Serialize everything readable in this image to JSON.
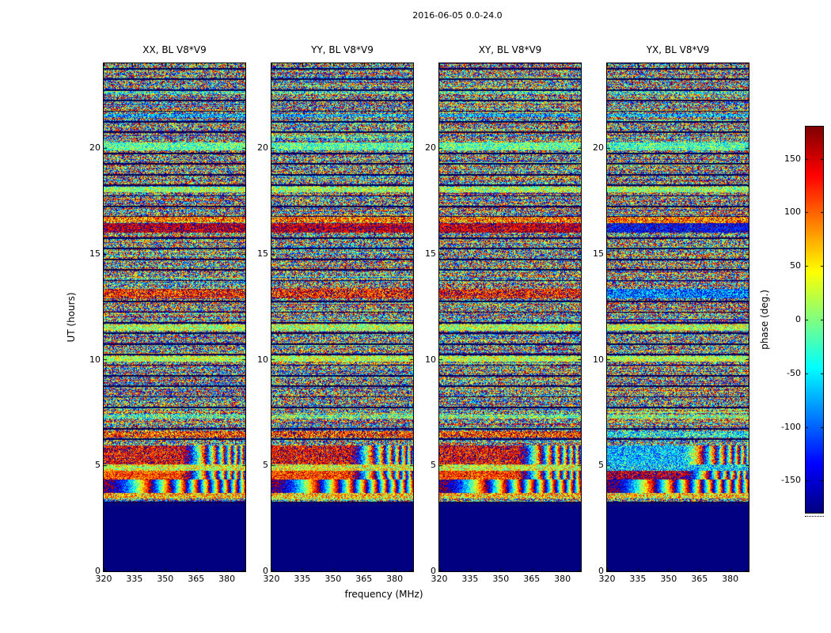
{
  "figure": {
    "title": "2016-06-05 0.0-24.0",
    "background": "#ffffff"
  },
  "chart_data": {
    "type": "heatmap",
    "title": "2016-06-05 0.0-24.0",
    "xlabel": "frequency (MHz)",
    "ylabel": "UT (hours)",
    "colorbar_label": "phase (deg.)",
    "colormap": "jet",
    "xlim": [
      320,
      389
    ],
    "ylim": [
      0,
      24
    ],
    "x_ticks": [
      320,
      335,
      350,
      365,
      380
    ],
    "y_ticks": [
      0,
      5,
      10,
      15,
      20
    ],
    "colorbar_lim": [
      -180,
      180
    ],
    "colorbar_ticks": [
      -150,
      -100,
      -50,
      0,
      50,
      100,
      150
    ],
    "panels": [
      {
        "pol": "XX",
        "title": "XX, BL V8*V9"
      },
      {
        "pol": "YY",
        "title": "YY, BL V8*V9"
      },
      {
        "pol": "XY",
        "title": "XY, BL V8*V9"
      },
      {
        "pol": "YX",
        "title": "YX, BL V8*V9"
      }
    ],
    "flagged_hours": [
      0,
      3.22
    ],
    "features": [
      {
        "from": 3.45,
        "to": 3.7,
        "type": "coherent",
        "phase": 60,
        "coherence": 0.5
      },
      {
        "from": 3.7,
        "to": 4.35,
        "type": "sweep",
        "coherence": 0.75
      },
      {
        "from": 4.35,
        "to": 4.75,
        "type": "coherent",
        "phase": 115,
        "coherence": 0.65,
        "chirp_right": true,
        "panel_phase": {
          "YX": 160
        }
      },
      {
        "from": 4.75,
        "to": 5.05,
        "type": "coherent",
        "phase": 35,
        "coherence": 0.55,
        "panel_phase": {
          "YX": -55
        }
      },
      {
        "from": 5.05,
        "to": 5.95,
        "type": "coherent",
        "phase": 140,
        "coherence": 0.6,
        "chirp_right": true,
        "panel_phase": {
          "YX": -65
        }
      },
      {
        "from": 6.3,
        "to": 6.6,
        "type": "coherent",
        "phase": 120,
        "coherence": 0.5,
        "panel_phase": {
          "YX": -45
        }
      },
      {
        "from": 7.2,
        "to": 7.4,
        "type": "coherent",
        "phase": -5,
        "coherence": 0.45
      },
      {
        "from": 9.9,
        "to": 10.15,
        "type": "coherent",
        "phase": 25,
        "coherence": 0.6
      },
      {
        "from": 11.35,
        "to": 11.65,
        "type": "coherent",
        "phase": 20,
        "coherence": 0.55
      },
      {
        "from": 12.9,
        "to": 13.35,
        "type": "coherent",
        "phase": 130,
        "coherence": 0.55,
        "panel_phase": {
          "YX": -95
        }
      },
      {
        "from": 16.0,
        "to": 16.45,
        "type": "coherent",
        "phase": 155,
        "coherence": 0.7,
        "panel_phase": {
          "YX": -140
        }
      },
      {
        "from": 16.5,
        "to": 16.75,
        "type": "coherent",
        "phase": 95,
        "coherence": 0.5
      },
      {
        "from": 17.9,
        "to": 18.15,
        "type": "coherent",
        "phase": 15,
        "coherence": 0.55
      },
      {
        "from": 19.9,
        "to": 20.25,
        "type": "coherent",
        "phase": -15,
        "coherence": 0.6,
        "panel_phase": {
          "YX": -20
        }
      },
      {
        "from": 21.45,
        "to": 21.6,
        "type": "coherent",
        "phase": -70,
        "coherence": 0.5
      },
      {
        "from": 22.55,
        "to": 22.7,
        "type": "coherent",
        "phase": -30,
        "coherence": 0.4
      }
    ],
    "dark_line_hours": [
      3.26,
      3.74,
      4.24,
      4.74,
      5.24,
      5.74,
      6.24,
      6.74,
      7.24,
      7.74,
      8.24,
      8.74,
      9.24,
      9.74,
      10.24,
      10.74,
      11.24,
      11.74,
      12.24,
      12.74,
      13.24,
      13.74,
      14.24,
      14.74,
      15.24,
      15.74,
      16.24,
      16.74,
      17.24,
      17.74,
      18.24,
      18.74,
      19.24,
      19.74,
      20.24,
      20.74,
      21.24,
      21.74,
      22.24,
      22.74,
      23.24,
      23.74
    ],
    "noise": {
      "seed": 42,
      "streak_probability": 0.3
    }
  }
}
